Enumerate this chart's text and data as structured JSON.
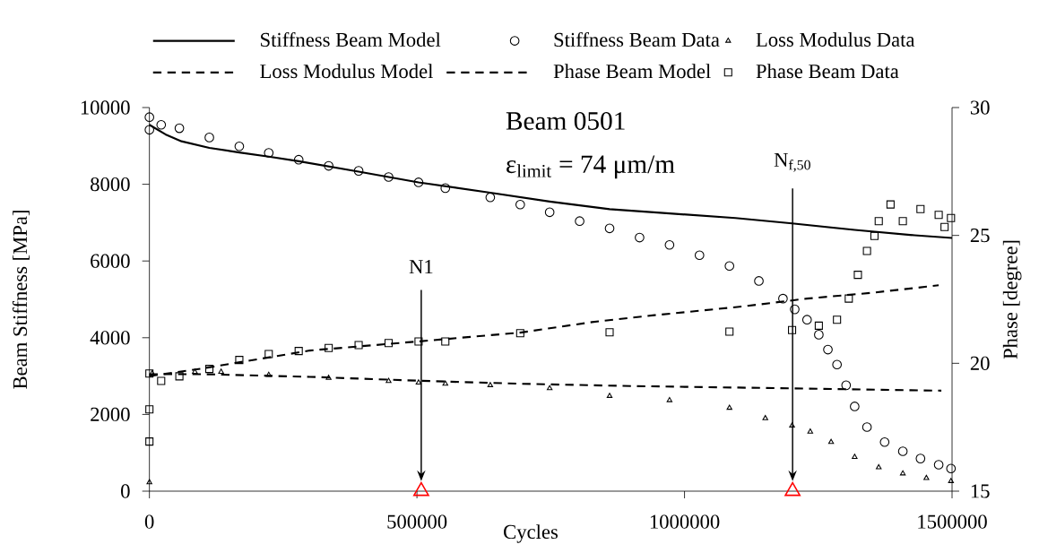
{
  "chart_data": {
    "type": "line",
    "title": "Beam 0501",
    "subtitle": "ε$_{limit}$ = 74 μm/m",
    "xlabel": "Cycles",
    "ylabel": "Beam Stiffness [MPa]",
    "y2label": "Phase [degree]",
    "xlim": [
      0,
      1500000
    ],
    "xticks": [
      0,
      500000,
      1000000,
      1500000
    ],
    "ylim": [
      0,
      10000
    ],
    "yticks": [
      0,
      2000,
      4000,
      6000,
      8000,
      10000
    ],
    "y2lim": [
      15,
      30
    ],
    "y2ticks": [
      15,
      20,
      25,
      30
    ],
    "legend": "top",
    "annotations": [
      {
        "text": "N1",
        "x": 508000,
        "y": 260
      },
      {
        "text": "N$_{f,50}$",
        "x": 1202000,
        "y": 260
      }
    ],
    "series": [
      {
        "name": "Stiffness Beam Model",
        "type": "line",
        "color": "#000000",
        "marker": "none",
        "line_style": "solid",
        "x": [
          0,
          30000,
          60000,
          112000,
          168000,
          223000,
          279000,
          391000,
          503000,
          637000,
          748000,
          860000,
          972000,
          1095000,
          1201000,
          1318000,
          1430000,
          1500000
        ],
        "values": [
          9550,
          9300,
          9120,
          8950,
          8830,
          8720,
          8600,
          8330,
          8050,
          7780,
          7550,
          7350,
          7240,
          7120,
          6980,
          6810,
          6670,
          6600
        ]
      },
      {
        "name": "Stiffness Beam Data",
        "type": "scatter",
        "color": "#000000",
        "marker": "circle",
        "x": [
          0,
          0,
          22000,
          56000,
          112000,
          168000,
          223000,
          279000,
          335000,
          391000,
          447000,
          503000,
          553000,
          637000,
          693000,
          748000,
          804000,
          860000,
          916000,
          972000,
          1028000,
          1084000,
          1139000,
          1184000,
          1206000,
          1229000,
          1251000,
          1268000,
          1285000,
          1302000,
          1318000,
          1341000,
          1374000,
          1408000,
          1441000,
          1475000,
          1498000
        ],
        "values": [
          9750,
          9420,
          9550,
          9460,
          9220,
          8990,
          8820,
          8640,
          8480,
          8350,
          8190,
          8050,
          7900,
          7660,
          7470,
          7270,
          7040,
          6850,
          6610,
          6420,
          6150,
          5870,
          5480,
          5020,
          4740,
          4470,
          4080,
          3690,
          3300,
          2760,
          2210,
          1670,
          1280,
          1040,
          850,
          690,
          590
        ]
      },
      {
        "name": "Loss Modulus Data",
        "type": "scatter",
        "color": "#000000",
        "marker": "triangle",
        "x": [
          0,
          5000,
          85000,
          134000,
          223000,
          335000,
          447000,
          503000,
          553000,
          637000,
          748000,
          860000,
          972000,
          1084000,
          1151000,
          1201000,
          1235000,
          1274000,
          1318000,
          1363000,
          1408000,
          1452000,
          1498000
        ],
        "values": [
          230,
          3070,
          3110,
          3110,
          3030,
          2950,
          2870,
          2830,
          2800,
          2760,
          2680,
          2480,
          2370,
          2170,
          1900,
          1710,
          1550,
          1280,
          890,
          620,
          460,
          340,
          260
        ]
      },
      {
        "name": "Loss Modulus Model",
        "type": "line",
        "color": "#000000",
        "marker": "none",
        "line_style": "dashed",
        "x": [
          0,
          100000,
          300000,
          500000,
          693000,
          900000,
          1100000,
          1200000,
          1480000
        ],
        "values": [
          3050,
          3050,
          2980,
          2880,
          2800,
          2740,
          2700,
          2680,
          2620
        ]
      },
      {
        "name": "Phase Beam Model",
        "type": "line",
        "color": "#000000",
        "marker": "none",
        "line_style": "dashed",
        "axis": "y2",
        "x": [
          0,
          100000,
          300000,
          500000,
          693000,
          827000,
          944000,
          1112000,
          1229000,
          1352000,
          1475000
        ],
        "values": [
          19.5,
          19.8,
          20.5,
          20.85,
          21.2,
          21.61,
          21.88,
          22.23,
          22.53,
          22.76,
          23.05
        ]
      },
      {
        "name": "Phase Beam Data",
        "type": "scatter",
        "color": "#000000",
        "marker": "square",
        "axis": "y2",
        "x": [
          0,
          0,
          0,
          22000,
          56000,
          112000,
          168000,
          223000,
          279000,
          335000,
          391000,
          447000,
          503000,
          553000,
          693000,
          860000,
          1084000,
          1201000,
          1251000,
          1285000,
          1307000,
          1324000,
          1341000,
          1355000,
          1363000,
          1385000,
          1408000,
          1441000,
          1475000,
          1486000,
          1498000
        ],
        "values": [
          19.6,
          18.2,
          16.94,
          19.31,
          19.49,
          19.78,
          20.13,
          20.36,
          20.48,
          20.6,
          20.71,
          20.79,
          20.85,
          20.85,
          21.18,
          21.21,
          21.24,
          21.3,
          21.47,
          21.7,
          22.53,
          23.46,
          24.39,
          24.98,
          25.56,
          26.21,
          25.56,
          26.03,
          25.8,
          25.33,
          25.68
        ]
      },
      {
        "type": "scatter",
        "color": "#ff0000",
        "marker": "triangle",
        "x": [
          508000,
          1202000
        ],
        "values": [
          0,
          0
        ]
      }
    ]
  }
}
